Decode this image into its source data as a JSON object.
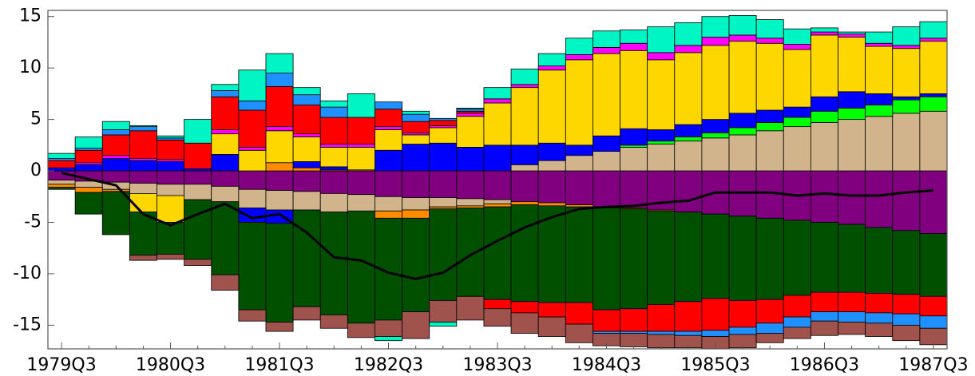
{
  "chart_data": {
    "type": "bar",
    "stacked": true,
    "categories": [
      "1979Q3",
      null,
      null,
      null,
      "1980Q3",
      null,
      null,
      null,
      "1981Q3",
      null,
      null,
      null,
      "1982Q3",
      null,
      null,
      null,
      "1983Q3",
      null,
      null,
      null,
      "1984Q3",
      null,
      null,
      null,
      "1985Q3",
      null,
      null,
      null,
      "1986Q3",
      null,
      null,
      null,
      "1987Q3"
    ],
    "ylim": [
      -17.3,
      15.6
    ],
    "yticks": [
      -15,
      -10,
      -5,
      0,
      5,
      10,
      15
    ],
    "series": [
      {
        "color": "#800080",
        "values": [
          -0.9,
          -1.0,
          -1.1,
          -1.2,
          -1.3,
          -1.3,
          -1.5,
          -1.8,
          -1.9,
          -2.0,
          -2.2,
          -2.3,
          -2.5,
          -2.6,
          -2.6,
          -2.7,
          -2.8,
          -3.0,
          -3.1,
          -3.3,
          -3.5,
          -3.6,
          -3.8,
          -4.0,
          -4.2,
          -4.4,
          -4.6,
          -4.8,
          -5.0,
          -5.2,
          -5.5,
          -5.8,
          -6.1
        ]
      },
      {
        "color": "#d2b48c",
        "values": [
          -0.4,
          -0.6,
          -0.7,
          -1.0,
          -1.1,
          -1.5,
          -1.5,
          -1.8,
          -1.9,
          -1.8,
          -1.8,
          -1.6,
          -1.4,
          -1.2,
          -0.9,
          -0.7,
          -0.4,
          0.6,
          1.0,
          1.5,
          1.9,
          2.3,
          2.6,
          2.9,
          3.2,
          3.5,
          3.9,
          4.3,
          4.7,
          5.0,
          5.3,
          5.6,
          5.8
        ]
      },
      {
        "color": "#00ff00",
        "values": [
          0,
          0,
          0,
          0,
          0,
          0,
          0,
          0,
          0,
          0,
          0,
          0,
          0,
          0,
          0,
          0,
          0,
          0,
          0,
          0,
          0,
          0.2,
          0.3,
          0.4,
          0.5,
          0.7,
          0.8,
          0.9,
          1.1,
          1.1,
          1.1,
          1.3,
          1.4
        ]
      },
      {
        "color": "#ff8c00",
        "values": [
          -0.3,
          -0.5,
          -0.2,
          0,
          0,
          0,
          0,
          0,
          0.8,
          0.3,
          0.1,
          0.1,
          -0.7,
          -0.8,
          -0.2,
          -0.2,
          -0.3,
          -0.3,
          -0.3,
          -0.2,
          -0.1,
          -0.1,
          -0.1,
          0,
          0,
          0,
          0,
          0,
          0,
          0,
          0,
          0,
          0
        ]
      },
      {
        "color": "#0000ff",
        "values": [
          0.3,
          0.6,
          1.2,
          1.0,
          0.9,
          0.2,
          1.6,
          -1.4,
          -1.3,
          0.6,
          0.3,
          0,
          2.0,
          2.6,
          2.7,
          2.3,
          2.5,
          1.9,
          1.7,
          1.0,
          1.5,
          1.6,
          1.1,
          1.2,
          1.3,
          1.4,
          1.2,
          1.0,
          1.4,
          1.6,
          1.1,
          0.3,
          0.3
        ]
      },
      {
        "color": "#ffd700",
        "values": [
          0,
          0,
          0,
          -1.8,
          -2.6,
          0,
          2.0,
          2.0,
          3.1,
          2.4,
          1.9,
          2.2,
          2.0,
          0.9,
          1.5,
          3.0,
          4.1,
          5.6,
          7.1,
          8.3,
          8.0,
          7.6,
          6.8,
          7.0,
          7.2,
          7.0,
          6.5,
          5.6,
          6.0,
          5.3,
          4.6,
          4.7,
          5.1
        ]
      },
      {
        "color": "#ff00ff",
        "values": [
          0,
          0.2,
          0.3,
          0.2,
          0.2,
          0,
          0.4,
          0.3,
          0.4,
          0.3,
          0.3,
          0.3,
          0.3,
          0.2,
          0.2,
          0.3,
          0.4,
          0.3,
          0.4,
          0.5,
          0.6,
          0.7,
          0.7,
          0.7,
          0.8,
          0.6,
          0.5,
          0.5,
          0.3,
          0.3,
          0.3,
          0.3,
          0.3
        ]
      },
      {
        "color": "#005000",
        "values": [
          -0.2,
          -2.1,
          -4.2,
          -4.2,
          -3.1,
          -5.8,
          -7.1,
          -8.5,
          -9.6,
          -9.4,
          -10.0,
          -10.9,
          -9.9,
          -9.1,
          -8.9,
          -8.6,
          -9.0,
          -9.4,
          -9.4,
          -9.3,
          -9.9,
          -9.7,
          -9.1,
          -8.7,
          -8.2,
          -8.2,
          -7.9,
          -7.3,
          -6.8,
          -6.6,
          -6.4,
          -6.2,
          -6.1
        ]
      },
      {
        "color": "#ff0000",
        "values": [
          0.7,
          1.2,
          2.0,
          2.7,
          1.9,
          2.5,
          3.2,
          3.6,
          3.9,
          2.8,
          2.6,
          2.6,
          1.7,
          1.1,
          0.5,
          0.2,
          -0.9,
          -1.1,
          -1.4,
          -2.1,
          -2.1,
          -2.2,
          -2.6,
          -2.9,
          -3.1,
          -2.6,
          -2.3,
          -2.1,
          -1.9,
          -1.9,
          -1.9,
          -1.9,
          -1.9
        ]
      },
      {
        "color": "#1e90ff",
        "values": [
          0.2,
          0.2,
          0.5,
          0.4,
          0.2,
          0,
          0.6,
          0.9,
          1.3,
          1.0,
          1.0,
          0,
          0.7,
          0.7,
          0.2,
          0.2,
          0,
          0,
          0,
          0,
          -0.2,
          -0.2,
          -0.3,
          -0.4,
          -0.6,
          -0.7,
          -1.0,
          -1.0,
          -0.9,
          -1.0,
          -1.0,
          -1.1,
          -1.2
        ]
      },
      {
        "color": "#a0524d",
        "values": [
          0,
          0,
          0,
          -0.5,
          -0.5,
          -0.6,
          -1.5,
          -1.1,
          -0.9,
          -1.3,
          -1.3,
          -1.4,
          -1.6,
          -2.6,
          -2.1,
          -2.3,
          -1.7,
          -2.0,
          -1.9,
          -1.8,
          -1.2,
          -1.3,
          -1.3,
          -1.2,
          -1.2,
          -1.3,
          -0.9,
          -1.1,
          -1.4,
          -1.2,
          -1.3,
          -1.5,
          -1.6
        ]
      },
      {
        "color": "#00f5c4",
        "values": [
          0.5,
          1.1,
          0.8,
          0.1,
          0.2,
          2.3,
          0.6,
          3.0,
          1.9,
          0.7,
          0.6,
          2.3,
          -0.4,
          0.3,
          -0.4,
          0.1,
          1.1,
          1.5,
          1.2,
          1.6,
          1.6,
          1.3,
          2.5,
          2.2,
          2.0,
          1.9,
          1.8,
          1.5,
          0.4,
          0.2,
          1.1,
          1.8,
          1.6
        ]
      },
      {
        "type": "line",
        "color": "#000000",
        "values": [
          -0.2,
          -0.8,
          -1.4,
          -4.2,
          -5.3,
          -4.2,
          -3.2,
          -4.6,
          -4.2,
          -6.0,
          -8.4,
          -8.7,
          -9.9,
          -10.5,
          -9.9,
          -8.2,
          -6.8,
          -5.5,
          -4.5,
          -3.7,
          -3.5,
          -3.4,
          -3.1,
          -2.9,
          -2.1,
          -2.1,
          -2.1,
          -2.4,
          -2.2,
          -2.4,
          -2.4,
          -2.1,
          -1.9
        ]
      }
    ]
  }
}
